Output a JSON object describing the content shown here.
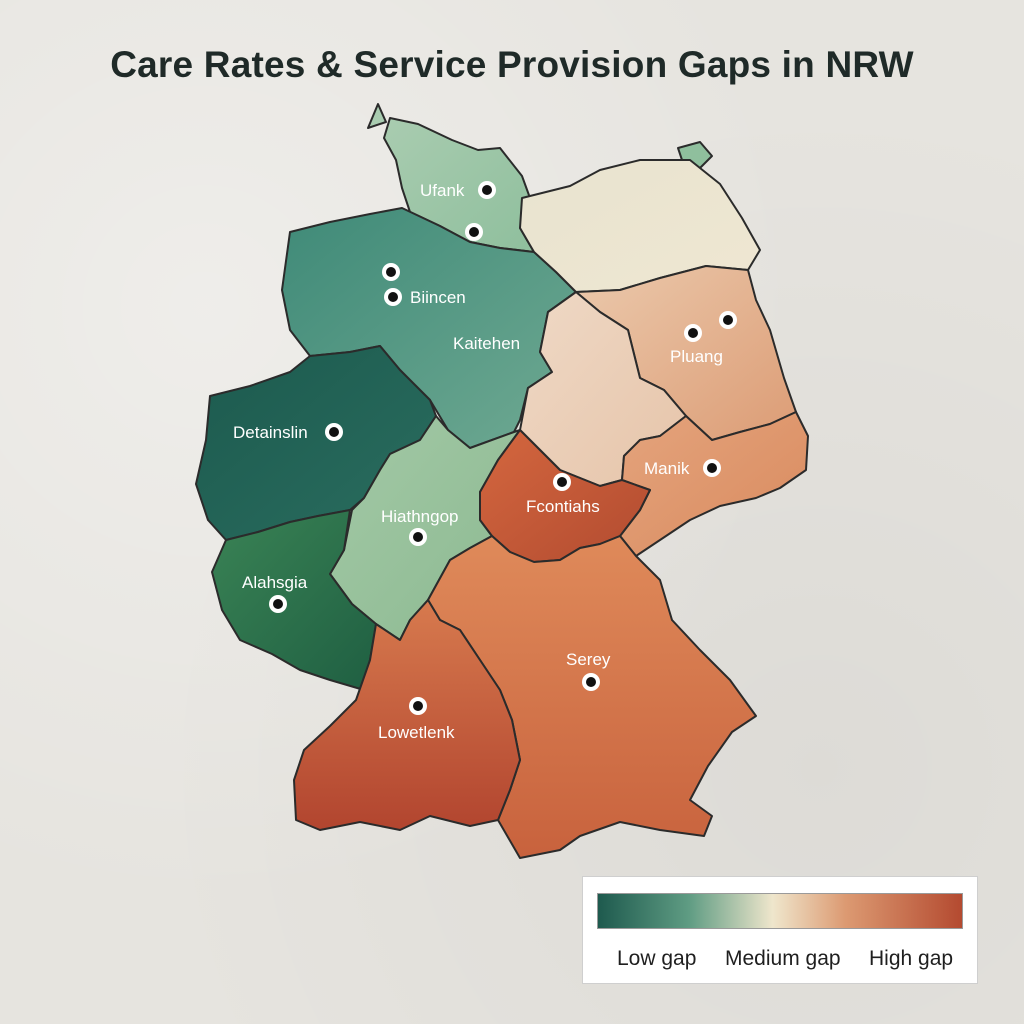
{
  "title": "Care Rates & Service Provision Gaps in NRW",
  "colors": {
    "background": "#e6e4df",
    "low_gap": "#1e5a4e",
    "medium_gap": "#efe6cc",
    "high_gap": "#b44a30"
  },
  "regions": [
    {
      "id": "north-coast",
      "label": "Ufank"
    },
    {
      "id": "north-central",
      "label": "Kaitehen"
    },
    {
      "id": "north-central-city",
      "label": "Biincen"
    },
    {
      "id": "northeast",
      "label": ""
    },
    {
      "id": "east-central",
      "label": "Pluang"
    },
    {
      "id": "central-east",
      "label": ""
    },
    {
      "id": "saxony",
      "label": "Manik"
    },
    {
      "id": "west",
      "label": "Detainslin"
    },
    {
      "id": "center",
      "label": "Hiathngop"
    },
    {
      "id": "thuringia",
      "label": "Fcontiahs"
    },
    {
      "id": "southwest",
      "label": "Alahsgia"
    },
    {
      "id": "southeast",
      "label": "Serey"
    },
    {
      "id": "south",
      "label": "Lowetlenk"
    }
  ],
  "legend": {
    "low": "Low gap",
    "medium": "Medium gap",
    "high": "High gap"
  }
}
